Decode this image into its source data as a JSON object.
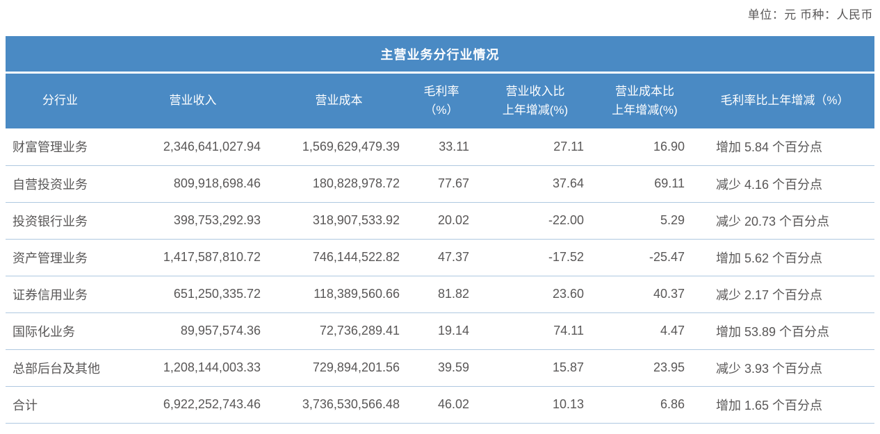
{
  "meta": {
    "unit_note": "单位：元  币种：人民币"
  },
  "table": {
    "title": "主营业务分行业情况",
    "columns": [
      {
        "name": "industry",
        "line1": "分行业"
      },
      {
        "name": "revenue",
        "line1": "营业收入"
      },
      {
        "name": "cost",
        "line1": "营业成本"
      },
      {
        "name": "gross-margin",
        "line1": "毛利率",
        "line2": "（%）"
      },
      {
        "name": "revenue-yoy",
        "line1": "营业收入比",
        "line2": "上年增减(%)"
      },
      {
        "name": "cost-yoy",
        "line1": "营业成本比",
        "line2": "上年增减(%)"
      },
      {
        "name": "gross-margin-yoy",
        "line1": "毛利率比上年增减（%）"
      }
    ],
    "rows": [
      [
        "财富管理业务",
        "2,346,641,027.94",
        "1,569,629,479.39",
        "33.11",
        "27.11",
        "16.90",
        "增加 5.84 个百分点"
      ],
      [
        "自营投资业务",
        "809,918,698.46",
        "180,828,978.72",
        "77.67",
        "37.64",
        "69.11",
        "减少 4.16 个百分点"
      ],
      [
        "投资银行业务",
        "398,753,292.93",
        "318,907,533.92",
        "20.02",
        "-22.00",
        "5.29",
        "减少 20.73 个百分点"
      ],
      [
        "资产管理业务",
        "1,417,587,810.72",
        "746,144,522.82",
        "47.37",
        "-17.52",
        "-25.47",
        "增加 5.62 个百分点"
      ],
      [
        "证券信用业务",
        "651,250,335.72",
        "118,389,560.66",
        "81.82",
        "23.60",
        "40.37",
        "减少 2.17 个百分点"
      ],
      [
        "国际化业务",
        "89,957,574.36",
        "72,736,289.41",
        "19.14",
        "74.11",
        "4.47",
        "增加 53.89 个百分点"
      ],
      [
        "总部后台及其他",
        "1,208,144,003.33",
        "729,894,201.56",
        "39.59",
        "15.87",
        "23.95",
        "减少 3.93 个百分点"
      ],
      [
        "合计",
        "6,922,252,743.46",
        "3,736,530,566.48",
        "46.02",
        "10.13",
        "6.86",
        "增加 1.65 个百分点"
      ]
    ]
  },
  "colors": {
    "header_blue": "#4a8ac4",
    "body_text": "#595757",
    "row_divider": "#aec8e0"
  }
}
